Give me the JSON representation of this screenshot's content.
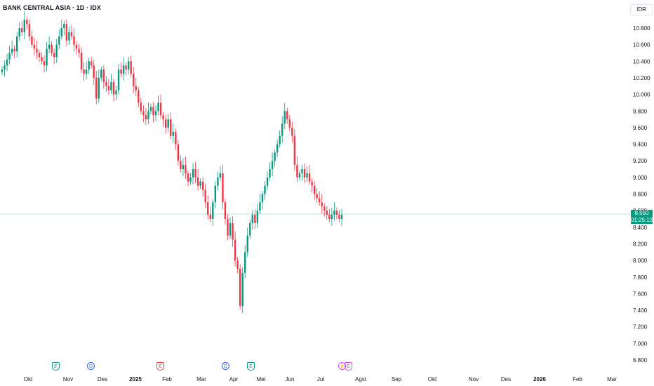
{
  "header": {
    "title": "BANK CENTRAL ASIA · 1D · IDX",
    "currency": "IDR"
  },
  "price_tag": {
    "price": "8.550",
    "countdown": "01:25:13"
  },
  "colors": {
    "up": "#089981",
    "down": "#f23645",
    "price_line": "#089981"
  },
  "events": [
    {
      "type": "earnings",
      "label": "E",
      "date": "Okt-Nov",
      "color": "green"
    },
    {
      "type": "dividend",
      "label": "D",
      "date": "Nov-Des",
      "color": "blue"
    },
    {
      "type": "earnings",
      "label": "E",
      "date": "Jan-Feb",
      "color": "red"
    },
    {
      "type": "dividend",
      "label": "D",
      "date": "Mar-Apr",
      "color": "blue"
    },
    {
      "type": "earnings",
      "label": "E",
      "date": "Apr",
      "color": "green"
    },
    {
      "type": "split",
      "label": "⚡",
      "date": "Jul",
      "color": "magenta"
    },
    {
      "type": "earnings",
      "label": "E",
      "date": "Jul",
      "color": "magenta"
    }
  ],
  "chart_data": {
    "type": "candlestick",
    "title": "BANK CENTRAL ASIA · 1D · IDX",
    "y_axis_ticks": [
      "10.800",
      "10.600",
      "10.400",
      "10.200",
      "10.000",
      "9.800",
      "9.600",
      "9.400",
      "9.200",
      "9.000",
      "8.800",
      "8.600",
      "8.400",
      "8.200",
      "8.000",
      "7.800",
      "7.600",
      "7.400",
      "7.200",
      "7.000",
      "6.800"
    ],
    "x_axis_ticks": [
      "Okt",
      "Nov",
      "Des",
      "2025",
      "Feb",
      "Mar",
      "Apr",
      "Mei",
      "Jun",
      "Jul",
      "Agst",
      "Sep",
      "Okt",
      "Nov",
      "Des",
      "2026",
      "Feb",
      "Mar"
    ],
    "ylim": [
      6800,
      10950
    ],
    "last_price": 8550,
    "closes": [
      10300,
      10350,
      10420,
      10500,
      10550,
      10520,
      10700,
      10800,
      10750,
      10900,
      10850,
      10700,
      10600,
      10550,
      10500,
      10450,
      10400,
      10350,
      10550,
      10600,
      10500,
      10450,
      10600,
      10700,
      10800,
      10850,
      10650,
      10750,
      10700,
      10600,
      10550,
      10500,
      10300,
      10250,
      10300,
      10400,
      10350,
      10200,
      9950,
      10200,
      10300,
      10150,
      10100,
      10050,
      10150,
      10000,
      10050,
      10300,
      10250,
      10350,
      10300,
      10400,
      10250,
      10100,
      10050,
      9900,
      9800,
      9750,
      9700,
      9800,
      9850,
      9750,
      9800,
      9900,
      9750,
      9700,
      9600,
      9700,
      9500,
      9550,
      9400,
      9200,
      9100,
      9150,
      9050,
      8950,
      9000,
      9100,
      9000,
      8900,
      8950,
      8850,
      8700,
      8550,
      8500,
      8700,
      8900,
      9000,
      9050,
      8700,
      8500,
      8300,
      8450,
      8250,
      8000,
      7900,
      7450,
      7850,
      8100,
      8300,
      8450,
      8550,
      8450,
      8600,
      8700,
      8800,
      8900,
      9000,
      9100,
      9200,
      9300,
      9400,
      9500,
      9650,
      9800,
      9700,
      9600,
      9500,
      9150,
      9000,
      9050,
      9100,
      9000,
      9050,
      8950,
      8900,
      8800,
      8750,
      8700,
      8650,
      8600,
      8550,
      8500,
      8550,
      8600,
      8550,
      8500,
      8550
    ]
  }
}
